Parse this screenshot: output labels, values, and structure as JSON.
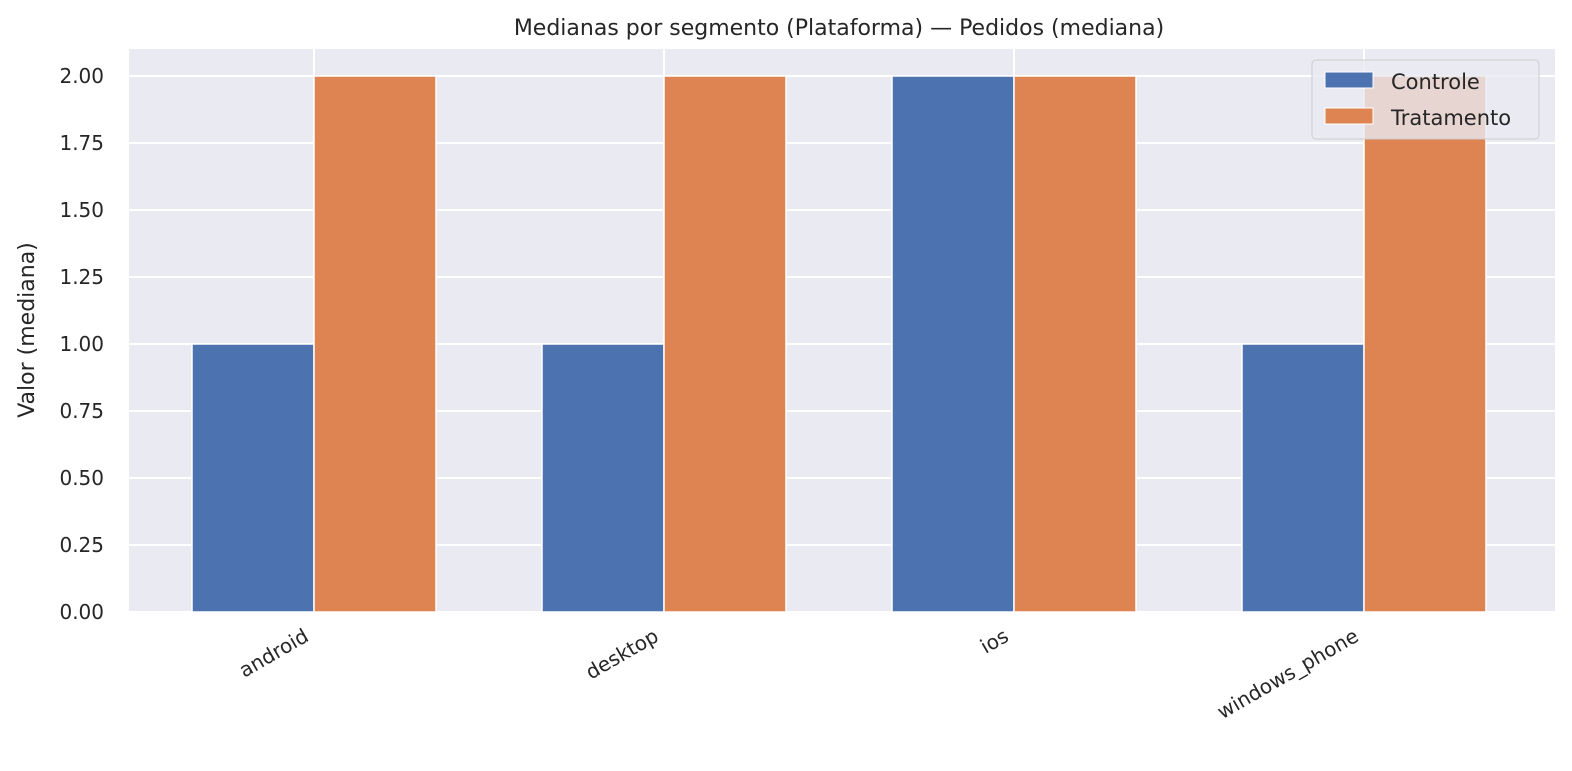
{
  "chart_data": {
    "type": "bar",
    "title": "Medianas por segmento (Plataforma) — Pedidos (mediana)",
    "xlabel": "",
    "ylabel": "Valor (mediana)",
    "categories": [
      "android",
      "desktop",
      "ios",
      "windows_phone"
    ],
    "series": [
      {
        "name": "Controle",
        "values": [
          1,
          1,
          2,
          1
        ],
        "color": "#4c72b0"
      },
      {
        "name": "Tratamento",
        "values": [
          2,
          2,
          2,
          2
        ],
        "color": "#dd8452"
      }
    ],
    "ylim": [
      0,
      2.1
    ],
    "yticks": [
      "0.00",
      "0.25",
      "0.50",
      "0.75",
      "1.00",
      "1.25",
      "1.50",
      "1.75",
      "2.00"
    ],
    "grid": true,
    "legend_position": "upper right",
    "background": "#eaeaf2"
  }
}
